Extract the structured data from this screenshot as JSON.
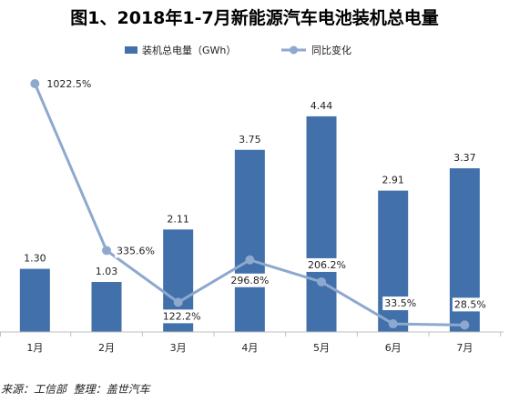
{
  "source": "来源：工信部  整理：盖世汽车",
  "chart_data": {
    "type": "bar",
    "title": "图1、2018年1-7月新能源汽车电池装机总电量",
    "xlabel": "",
    "ylabel": "",
    "categories": [
      "1月",
      "2月",
      "3月",
      "4月",
      "5月",
      "6月",
      "7月"
    ],
    "series": [
      {
        "name": "装机总电量（GWh）",
        "type": "bar",
        "axis": "primary",
        "color": "#4270AB",
        "values": [
          1.3,
          1.03,
          2.11,
          3.75,
          4.44,
          2.91,
          3.37
        ]
      },
      {
        "name": "同比变化",
        "type": "line",
        "axis": "secondary",
        "unit": "%",
        "marker": "circle",
        "color": "#8EA8CE",
        "values": [
          1022.5,
          335.6,
          122.2,
          296.8,
          206.2,
          33.5,
          28.5
        ]
      }
    ],
    "ylim": [
      0,
      5
    ],
    "y2lim": [
      0,
      1000
    ],
    "grid": false,
    "y_axes_visible": false,
    "data_labels": true,
    "legend_position": "top-center"
  }
}
